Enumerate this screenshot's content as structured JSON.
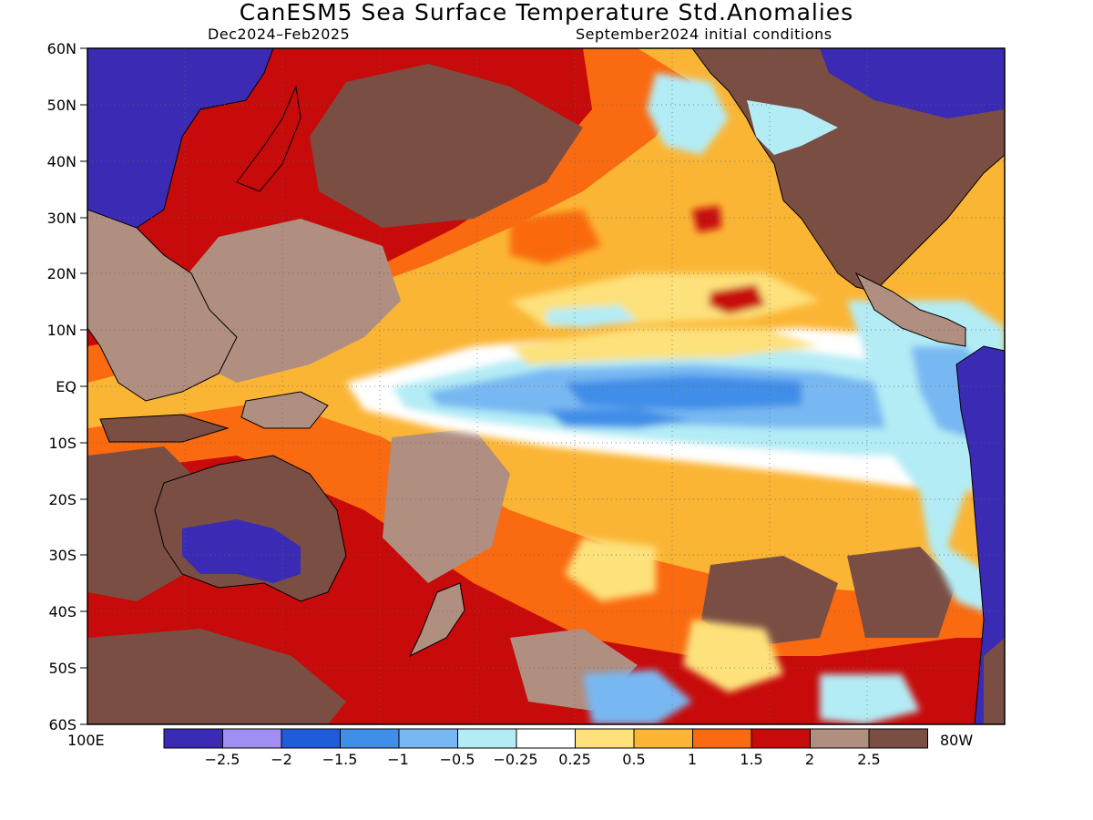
{
  "title": "CanESM5 Sea Surface Temperature Std.Anomalies",
  "subtitle_left": "Dec2024–Feb2025",
  "subtitle_right": "September2024 initial conditions",
  "lat_labels": [
    "60N",
    "50N",
    "40N",
    "30N",
    "20N",
    "10N",
    "EQ",
    "10S",
    "20S",
    "30S",
    "40S",
    "50S",
    "60S"
  ],
  "lon_labels": {
    "left": "100E",
    "right": "80W"
  },
  "legend": {
    "colors": [
      "#3b2bb4",
      "#a08ef2",
      "#1f5cd9",
      "#3f8ee8",
      "#78b8f2",
      "#b3ecf5",
      "#ffffff",
      "#fde17a",
      "#fbb535",
      "#fa6a10",
      "#c70a0a",
      "#b08e80",
      "#7a4e43"
    ],
    "labels": [
      "−2.5",
      "−2",
      "−1.5",
      "−1",
      "−0.5",
      "−0.25",
      "0.25",
      "0.5",
      "1",
      "1.5",
      "2",
      "2.5"
    ]
  },
  "colors": {
    "ocean_base": "#fbb535",
    "land_cold": "#3b2bb4",
    "land_warm": "#7a4e43",
    "coast": "#000000"
  }
}
